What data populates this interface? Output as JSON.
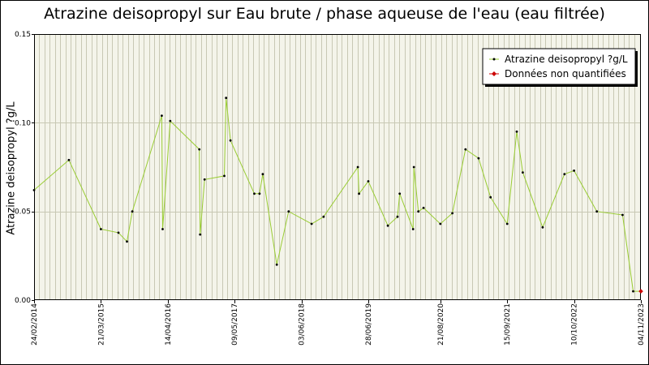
{
  "chart_data": {
    "type": "line",
    "title": "Atrazine deisopropyl sur Eau brute / phase aqueuse de l'eau (eau filtrée)",
    "ylabel": "Atrazine deisopropyl ?g/L",
    "xlabel": "",
    "ylim": [
      0,
      0.15
    ],
    "y_ticks": [
      "0.00",
      "0.05",
      "0.10",
      "0.15"
    ],
    "x_ticks": [
      "24/02/2014",
      "21/03/2015",
      "14/04/2016",
      "09/05/2017",
      "03/06/2018",
      "28/06/2019",
      "21/08/2020",
      "15/09/2021",
      "10/10/2022",
      "04/11/2023"
    ],
    "grid": true,
    "legend": {
      "position": "top-right",
      "entries": [
        "Atrazine deisopropyl ?g/L",
        "Données non quantifiées"
      ]
    },
    "colors": {
      "line": "#99cc33",
      "point": "#000000",
      "unquantified": "#cc0000",
      "grid": "#c8c8b4"
    },
    "series": [
      {
        "name": "Atrazine deisopropyl ?g/L",
        "x": [
          "2014-02-24",
          "2014-09-15",
          "2015-03-21",
          "2015-07-01",
          "2015-08-20",
          "2015-09-20",
          "2016-03-10",
          "2016-03-15",
          "2016-04-28",
          "2016-10-15",
          "2016-10-20",
          "2016-11-15",
          "2017-03-10",
          "2017-03-20",
          "2017-04-15",
          "2017-09-01",
          "2017-10-01",
          "2017-10-20",
          "2018-01-10",
          "2018-03-20",
          "2018-08-01",
          "2018-10-10",
          "2019-04-28",
          "2019-05-05",
          "2019-06-28",
          "2019-10-20",
          "2019-12-15",
          "2019-12-28",
          "2020-03-15",
          "2020-03-20",
          "2020-04-15",
          "2020-05-15",
          "2020-08-21",
          "2020-10-30",
          "2021-01-15",
          "2021-04-01",
          "2021-06-10",
          "2021-09-15",
          "2021-11-10",
          "2021-12-15",
          "2022-04-10",
          "2022-08-15",
          "2022-10-10",
          "2023-02-20",
          "2023-07-20",
          "2023-09-20"
        ],
        "y": [
          0.062,
          0.079,
          0.04,
          0.038,
          0.033,
          0.05,
          0.104,
          0.04,
          0.101,
          0.085,
          0.037,
          0.068,
          0.07,
          0.114,
          0.09,
          0.06,
          0.06,
          0.071,
          0.02,
          0.05,
          0.043,
          0.047,
          0.075,
          0.06,
          0.067,
          0.042,
          0.047,
          0.06,
          0.04,
          0.075,
          0.05,
          0.052,
          0.043,
          0.049,
          0.085,
          0.08,
          0.058,
          0.043,
          0.095,
          0.072,
          0.041,
          0.071,
          0.073,
          0.05,
          0.048,
          0.005
        ]
      },
      {
        "name": "Données non quantifiées",
        "x": [
          "2023-11-04"
        ],
        "y": [
          0.005
        ]
      }
    ]
  }
}
